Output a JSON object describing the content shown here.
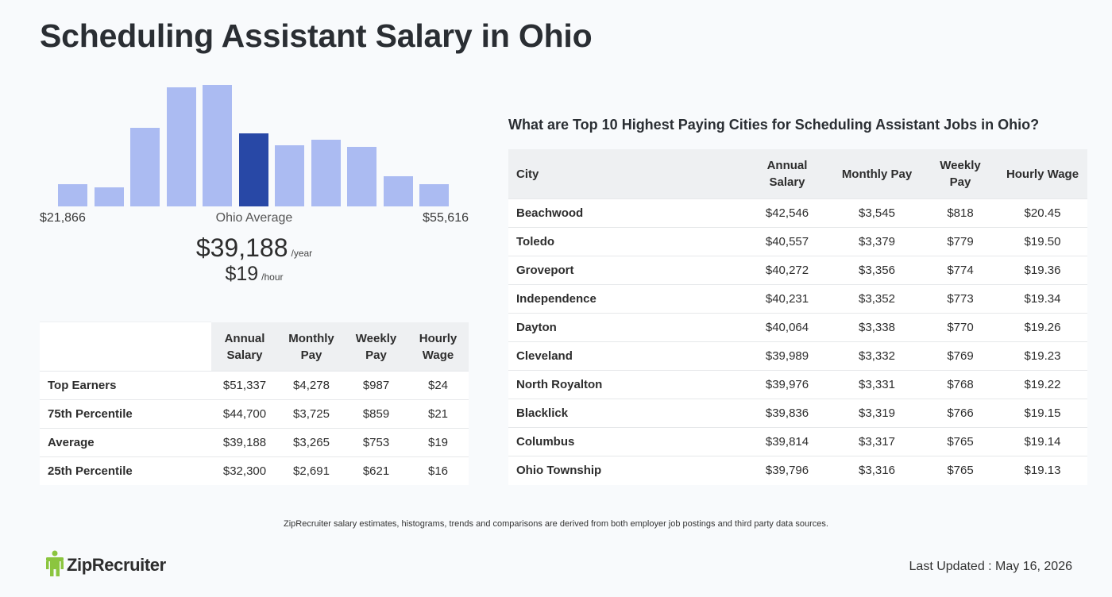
{
  "page": {
    "title": "Scheduling Assistant Salary in Ohio"
  },
  "histogram": {
    "bar_heights_pct": [
      18,
      16,
      65,
      98,
      100,
      60,
      50,
      55,
      49,
      25,
      18
    ],
    "highlight_index": 5,
    "bar_color": "#abbbf2",
    "highlight_color": "#2848a6",
    "min_label": "$21,866",
    "avg_label": "Ohio Average",
    "max_label": "$55,616"
  },
  "average": {
    "annual": "$39,188",
    "annual_unit": "/year",
    "hourly": "$19",
    "hourly_unit": "/hour"
  },
  "percentile_table": {
    "headers": [
      "Annual Salary",
      "Monthly Pay",
      "Weekly Pay",
      "Hourly Wage"
    ],
    "rows": [
      {
        "label": "Top Earners",
        "values": [
          "$51,337",
          "$4,278",
          "$987",
          "$24"
        ]
      },
      {
        "label": "75th Percentile",
        "values": [
          "$44,700",
          "$3,725",
          "$859",
          "$21"
        ]
      },
      {
        "label": "Average",
        "values": [
          "$39,188",
          "$3,265",
          "$753",
          "$19"
        ]
      },
      {
        "label": "25th Percentile",
        "values": [
          "$32,300",
          "$2,691",
          "$621",
          "$16"
        ]
      }
    ]
  },
  "cities": {
    "heading": "What are Top 10 Highest Paying Cities for Scheduling Assistant Jobs in Ohio?",
    "headers": [
      "City",
      "Annual Salary",
      "Monthly Pay",
      "Weekly Pay",
      "Hourly Wage"
    ],
    "rows": [
      {
        "city": "Beachwood",
        "values": [
          "$42,546",
          "$3,545",
          "$818",
          "$20.45"
        ]
      },
      {
        "city": "Toledo",
        "values": [
          "$40,557",
          "$3,379",
          "$779",
          "$19.50"
        ]
      },
      {
        "city": "Groveport",
        "values": [
          "$40,272",
          "$3,356",
          "$774",
          "$19.36"
        ]
      },
      {
        "city": "Independence",
        "values": [
          "$40,231",
          "$3,352",
          "$773",
          "$19.34"
        ]
      },
      {
        "city": "Dayton",
        "values": [
          "$40,064",
          "$3,338",
          "$770",
          "$19.26"
        ]
      },
      {
        "city": "Cleveland",
        "values": [
          "$39,989",
          "$3,332",
          "$769",
          "$19.23"
        ]
      },
      {
        "city": "North Royalton",
        "values": [
          "$39,976",
          "$3,331",
          "$768",
          "$19.22"
        ]
      },
      {
        "city": "Blacklick",
        "values": [
          "$39,836",
          "$3,319",
          "$766",
          "$19.15"
        ]
      },
      {
        "city": "Columbus",
        "values": [
          "$39,814",
          "$3,317",
          "$765",
          "$19.14"
        ]
      },
      {
        "city": "Ohio Township",
        "values": [
          "$39,796",
          "$3,316",
          "$765",
          "$19.13"
        ]
      }
    ]
  },
  "footer": {
    "disclaimer": "ZipRecruiter salary estimates, histograms, trends and comparisons are derived from both employer job postings and third party data sources.",
    "logo_text": "ZipRecruiter",
    "logo_icon": "ziprecruiter-person-icon",
    "logo_color": "#8bc53f",
    "last_updated": "Last Updated : May 16, 2026"
  }
}
